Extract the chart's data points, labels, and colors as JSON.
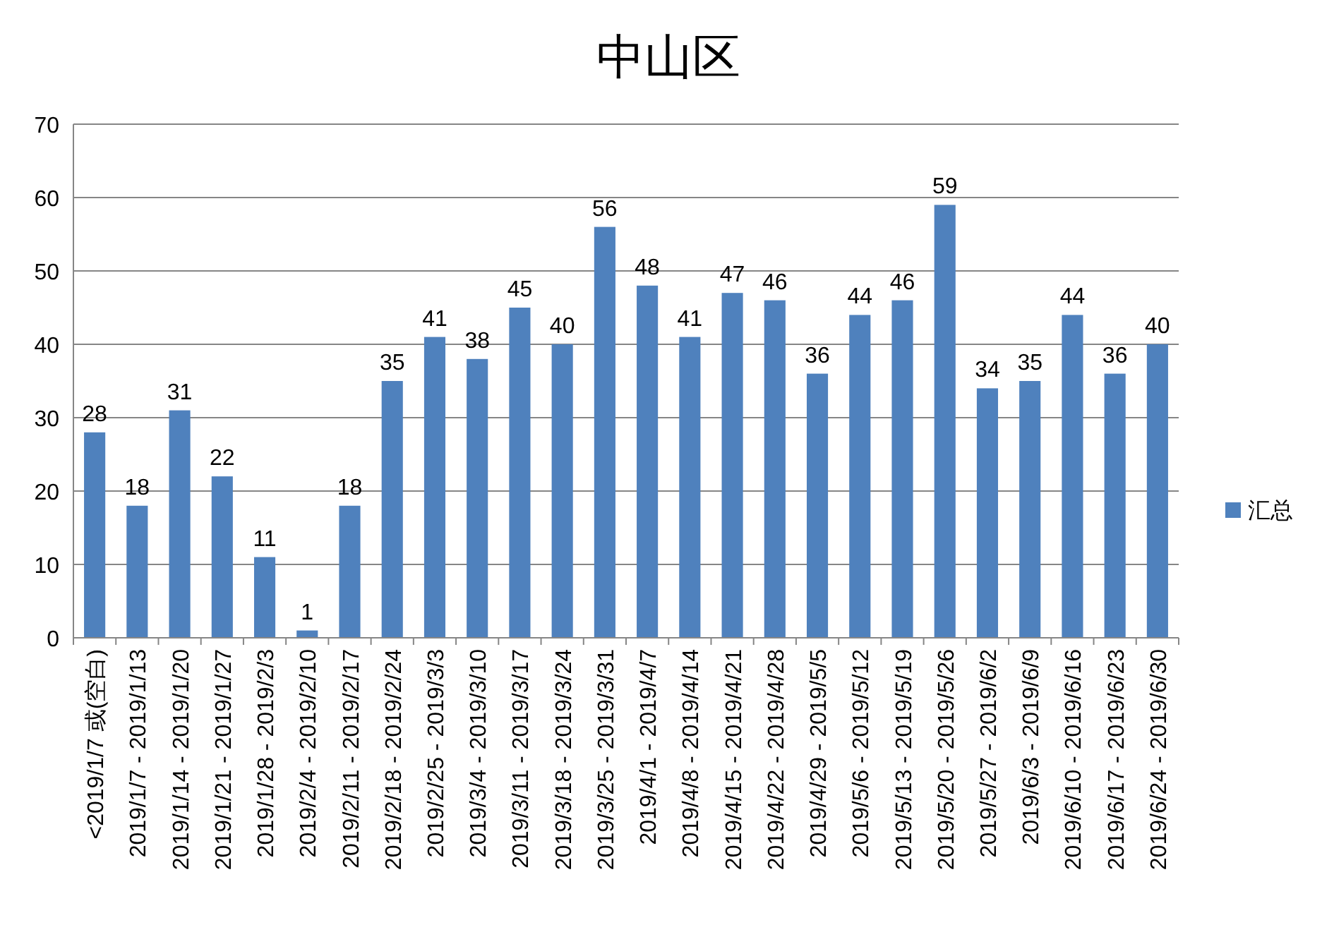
{
  "chart_data": {
    "type": "bar",
    "title": "中山区",
    "categories": [
      "<2019/1/7 或(空白)",
      "2019/1/7 - 2019/1/13",
      "2019/1/14 - 2019/1/20",
      "2019/1/21 - 2019/1/27",
      "2019/1/28 - 2019/2/3",
      "2019/2/4 - 2019/2/10",
      "2019/2/11 - 2019/2/17",
      "2019/2/18 - 2019/2/24",
      "2019/2/25 - 2019/3/3",
      "2019/3/4 - 2019/3/10",
      "2019/3/11 - 2019/3/17",
      "2019/3/18 - 2019/3/24",
      "2019/3/25 - 2019/3/31",
      "2019/4/1 - 2019/4/7",
      "2019/4/8 - 2019/4/14",
      "2019/4/15 - 2019/4/21",
      "2019/4/22 - 2019/4/28",
      "2019/4/29 - 2019/5/5",
      "2019/5/6 - 2019/5/12",
      "2019/5/13 - 2019/5/19",
      "2019/5/20 - 2019/5/26",
      "2019/5/27 - 2019/6/2",
      "2019/6/3 - 2019/6/9",
      "2019/6/10 - 2019/6/16",
      "2019/6/17 - 2019/6/23",
      "2019/6/24 - 2019/6/30"
    ],
    "series": [
      {
        "name": "汇总",
        "color": "#4f81bd",
        "values": [
          28,
          18,
          31,
          22,
          11,
          1,
          18,
          35,
          41,
          38,
          45,
          40,
          56,
          48,
          41,
          47,
          46,
          36,
          44,
          46,
          59,
          34,
          35,
          44,
          36,
          40
        ]
      }
    ],
    "ylim": [
      0,
      70
    ],
    "yticks": [
      0,
      10,
      20,
      30,
      40,
      50,
      60,
      70
    ],
    "grid": "y",
    "legend": "right",
    "data_labels": true
  }
}
